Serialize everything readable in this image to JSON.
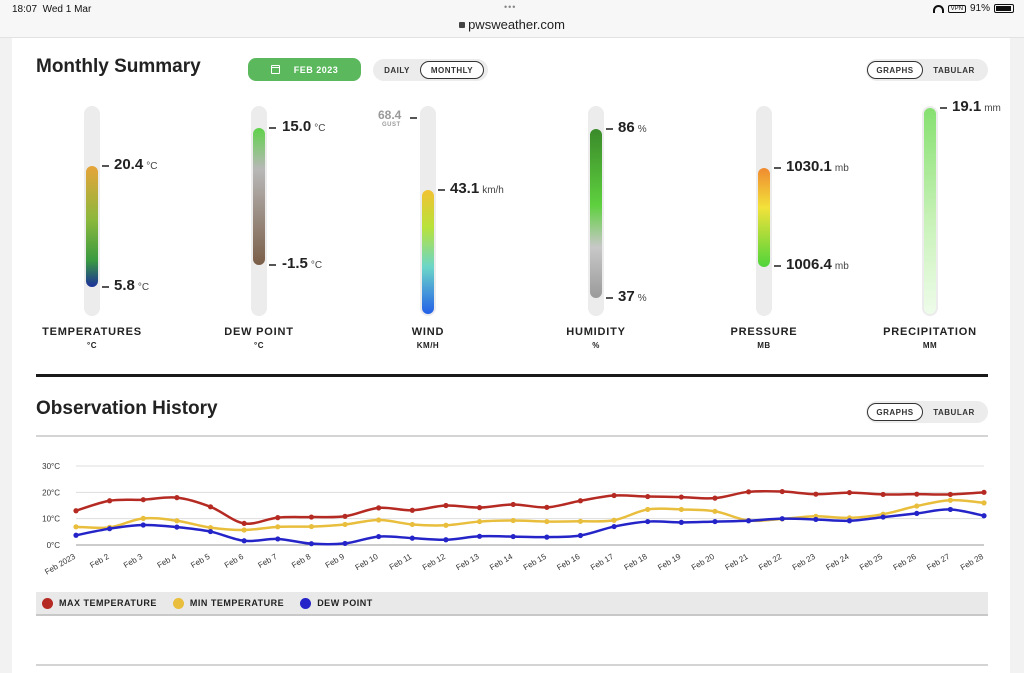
{
  "status_bar": {
    "time": "18:07",
    "date": "Wed 1 Mar",
    "url": "pwsweather.com",
    "vpn": "VPN",
    "battery": "91%"
  },
  "summary": {
    "title": "Monthly Summary",
    "date_button": "FEB 2023",
    "period_toggle": {
      "daily": "DAILY",
      "monthly": "MONTHLY"
    },
    "view_toggle": {
      "graphs": "GRAPHS",
      "tabular": "TABULAR"
    },
    "gauges": {
      "temperatures": {
        "label": "TEMPERATURES",
        "unit": "°C",
        "max": "20.4",
        "min": "5.8"
      },
      "dew_point": {
        "label": "DEW POINT",
        "unit": "°C",
        "max": "15.0",
        "min": "-1.5"
      },
      "wind": {
        "label": "WIND",
        "unit": "KM/H",
        "value_unit": "km/h",
        "gust": "68.4",
        "gust_label": "GUST",
        "value": "43.1"
      },
      "humidity": {
        "label": "HUMIDITY",
        "unit": "%",
        "max": "86",
        "min": "37"
      },
      "pressure": {
        "label": "PRESSURE",
        "unit": "MB",
        "value_unit": "mb",
        "max": "1030.1",
        "min": "1006.4"
      },
      "precipitation": {
        "label": "PRECIPITATION",
        "unit": "MM",
        "value_unit": "mm",
        "value": "19.1"
      }
    }
  },
  "history": {
    "title": "Observation History",
    "view_toggle": {
      "graphs": "GRAPHS",
      "tabular": "TABULAR"
    }
  },
  "colors": {
    "max_temp": "#b52a22",
    "min_temp": "#e8be3c",
    "dew_point": "#2424c8",
    "accent_green": "#5bb85d"
  },
  "chart_data": {
    "type": "line",
    "x": [
      "Feb 2023",
      "Feb 2",
      "Feb 3",
      "Feb 4",
      "Feb 5",
      "Feb 6",
      "Feb 7",
      "Feb 8",
      "Feb 9",
      "Feb 10",
      "Feb 11",
      "Feb 12",
      "Feb 13",
      "Feb 14",
      "Feb 15",
      "Feb 16",
      "Feb 17",
      "Feb 18",
      "Feb 19",
      "Feb 20",
      "Feb 21",
      "Feb 22",
      "Feb 23",
      "Feb 24",
      "Feb 25",
      "Feb 26",
      "Feb 27",
      "Feb 28"
    ],
    "yticks": [
      "30°C",
      "20°C",
      "10°C",
      "0°C"
    ],
    "ylim": [
      0,
      30
    ],
    "grid": true,
    "legend_position": "bottom-left",
    "series": [
      {
        "name": "MAX TEMPERATURE",
        "color": "#b52a22",
        "values": [
          13.0,
          16.8,
          17.2,
          18.0,
          14.5,
          8.2,
          10.4,
          10.6,
          10.9,
          14.1,
          13.2,
          15.0,
          14.2,
          15.4,
          14.3,
          16.8,
          18.8,
          18.4,
          18.2,
          17.8,
          20.2,
          20.3,
          19.3,
          19.9,
          19.2,
          19.3,
          19.2,
          20.0
        ]
      },
      {
        "name": "MIN TEMPERATURE",
        "color": "#e8be3c",
        "values": [
          6.9,
          6.7,
          10.1,
          9.2,
          6.6,
          5.7,
          6.9,
          7.0,
          7.8,
          9.5,
          7.8,
          7.5,
          8.9,
          9.3,
          8.9,
          9.0,
          9.4,
          13.5,
          13.5,
          12.8,
          9.3,
          9.9,
          10.9,
          10.3,
          11.7,
          14.8,
          17.0,
          16.0
        ]
      },
      {
        "name": "DEW POINT",
        "color": "#2424c8",
        "values": [
          3.7,
          6.2,
          7.6,
          6.8,
          5.1,
          1.6,
          2.3,
          0.5,
          0.6,
          3.2,
          2.6,
          2.0,
          3.3,
          3.2,
          3.0,
          3.6,
          7.0,
          8.9,
          8.6,
          8.9,
          9.2,
          10.0,
          9.7,
          9.2,
          10.6,
          12.0,
          13.5,
          11.1
        ]
      }
    ]
  }
}
